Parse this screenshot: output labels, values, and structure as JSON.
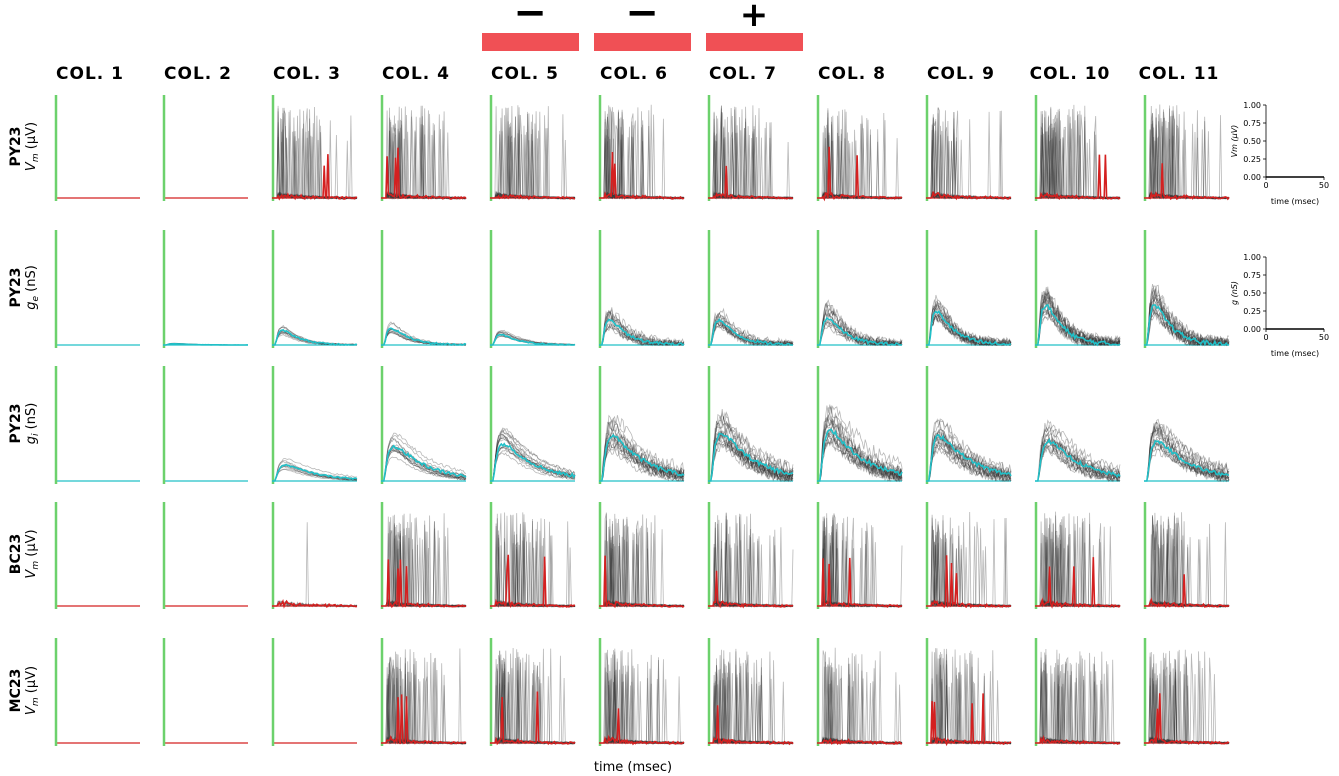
{
  "stimulus": {
    "signs": [
      "−",
      "−",
      "+"
    ],
    "bar_color": "#f05055"
  },
  "columns": [
    "COL. 1",
    "COL. 2",
    "COL. 3",
    "COL. 4",
    "COL. 5",
    "COL. 6",
    "COL. 7",
    "COL. 8",
    "COL. 9",
    "COL. 10",
    "COL. 11"
  ],
  "rows": [
    {
      "cell": "PY23",
      "measure": "V",
      "sub": "m",
      "unit": " (μV)"
    },
    {
      "cell": "PY23",
      "measure": "g",
      "sub": "e",
      "unit": " (nS)"
    },
    {
      "cell": "PY23",
      "measure": "g",
      "sub": "i",
      "unit": " (nS)"
    },
    {
      "cell": "BC23",
      "measure": "V",
      "sub": "m",
      "unit": " (μV)"
    },
    {
      "cell": "MC23",
      "measure": "V",
      "sub": "m",
      "unit": " (μV)"
    }
  ],
  "xlabel": "time (msec)",
  "colors": {
    "stimulus_onset": "#6cd16c",
    "trials": "#333333",
    "mean_vm": "#d42020",
    "mean_conductance": "#20c0c8"
  },
  "chart_data": {
    "type": "line",
    "description_rows": [
      "PY23 Vm",
      "PY23 ge",
      "PY23 gi",
      "BC23 Vm",
      "MC23 Vm"
    ],
    "activity_level": [
      [
        0,
        0,
        0.9,
        1.0,
        0.9,
        1.0,
        1.0,
        1.0,
        1.0,
        1.0,
        1.0
      ],
      [
        0,
        0.03,
        0.35,
        0.4,
        0.25,
        0.6,
        0.6,
        0.65,
        0.8,
        0.95,
        0.95
      ],
      [
        0,
        0,
        0.3,
        0.65,
        0.7,
        0.85,
        0.9,
        0.95,
        0.85,
        0.75,
        0.75
      ],
      [
        0,
        0,
        0.1,
        1.0,
        1.0,
        1.0,
        1.0,
        1.0,
        1.0,
        1.0,
        1.0
      ],
      [
        0,
        0,
        0,
        1.0,
        1.0,
        1.0,
        1.0,
        1.0,
        1.0,
        1.0,
        1.0
      ]
    ],
    "legend_axes": [
      {
        "ylabel": "Vm (μV)",
        "yticks": [
          "0.00",
          "0.25",
          "0.50",
          "0.75",
          "1.00"
        ],
        "xticks": [
          "0",
          "50"
        ],
        "xlabel": "time (msec)"
      },
      {
        "ylabel": "g (nS)",
        "yticks": [
          "0.00",
          "0.25",
          "0.50",
          "0.75",
          "1.00"
        ],
        "xticks": [
          "0",
          "50"
        ],
        "xlabel": "time (msec)"
      }
    ]
  }
}
